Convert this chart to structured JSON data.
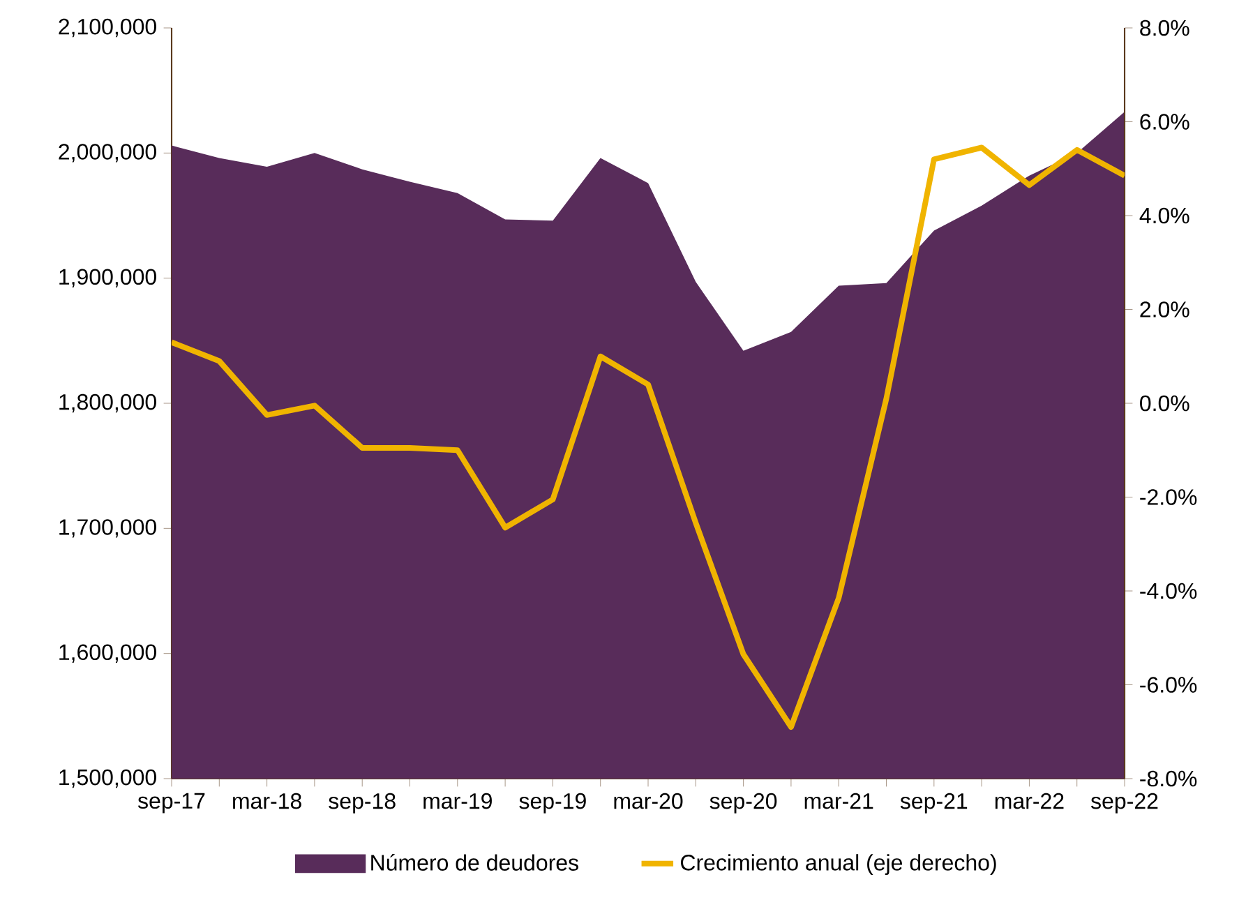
{
  "chart_data": {
    "type": "area",
    "categories": [
      "sep-17",
      null,
      "mar-18",
      null,
      "sep-18",
      null,
      "mar-19",
      null,
      "sep-19",
      null,
      "mar-20",
      null,
      "sep-20",
      null,
      "mar-21",
      null,
      "sep-21",
      null,
      "mar-22",
      null,
      "sep-22"
    ],
    "series": [
      {
        "name": "Número de deudores",
        "color": "#582c5a",
        "values": [
          2006000,
          1996000,
          1989000,
          2000000,
          1987000,
          1977000,
          1968000,
          1947000,
          1946000,
          1996000,
          1976000,
          1897000,
          1842000,
          1857000,
          1894000,
          1896000,
          1938000,
          1958000,
          1982000,
          2000000,
          2033000
        ]
      },
      {
        "name": "Crecimiento anual (eje derecho)",
        "type": "line",
        "axis": "y2",
        "color": "#f0b400",
        "values": [
          1.3,
          0.9,
          -0.25,
          -0.05,
          -0.95,
          -0.95,
          -1.0,
          -2.65,
          -2.05,
          1.0,
          0.4,
          -2.55,
          -5.35,
          -6.9,
          -4.15,
          0.1,
          5.2,
          5.45,
          4.65,
          5.4,
          4.85
        ]
      }
    ],
    "ylim": [
      1500000,
      2100000
    ],
    "yticks": [
      {
        "value": 1500000,
        "label": "1,500,000"
      },
      {
        "value": 1600000,
        "label": "1,600,000"
      },
      {
        "value": 1700000,
        "label": "1,700,000"
      },
      {
        "value": 1800000,
        "label": "1,800,000"
      },
      {
        "value": 1900000,
        "label": "1,900,000"
      },
      {
        "value": 2000000,
        "label": "2,000,000"
      },
      {
        "value": 2100000,
        "label": "2,100,000"
      }
    ],
    "y2lim": [
      -8,
      8
    ],
    "y2ticks": [
      {
        "value": -8,
        "label": "-8.0%"
      },
      {
        "value": -6,
        "label": "-6.0%"
      },
      {
        "value": -4,
        "label": "-4.0%"
      },
      {
        "value": -2,
        "label": "-2.0%"
      },
      {
        "value": 0,
        "label": "0.0%"
      },
      {
        "value": 2,
        "label": "2.0%"
      },
      {
        "value": 4,
        "label": "4.0%"
      },
      {
        "value": 6,
        "label": "6.0%"
      },
      {
        "value": 8,
        "label": "8.0%"
      }
    ],
    "legend": "bottom"
  }
}
